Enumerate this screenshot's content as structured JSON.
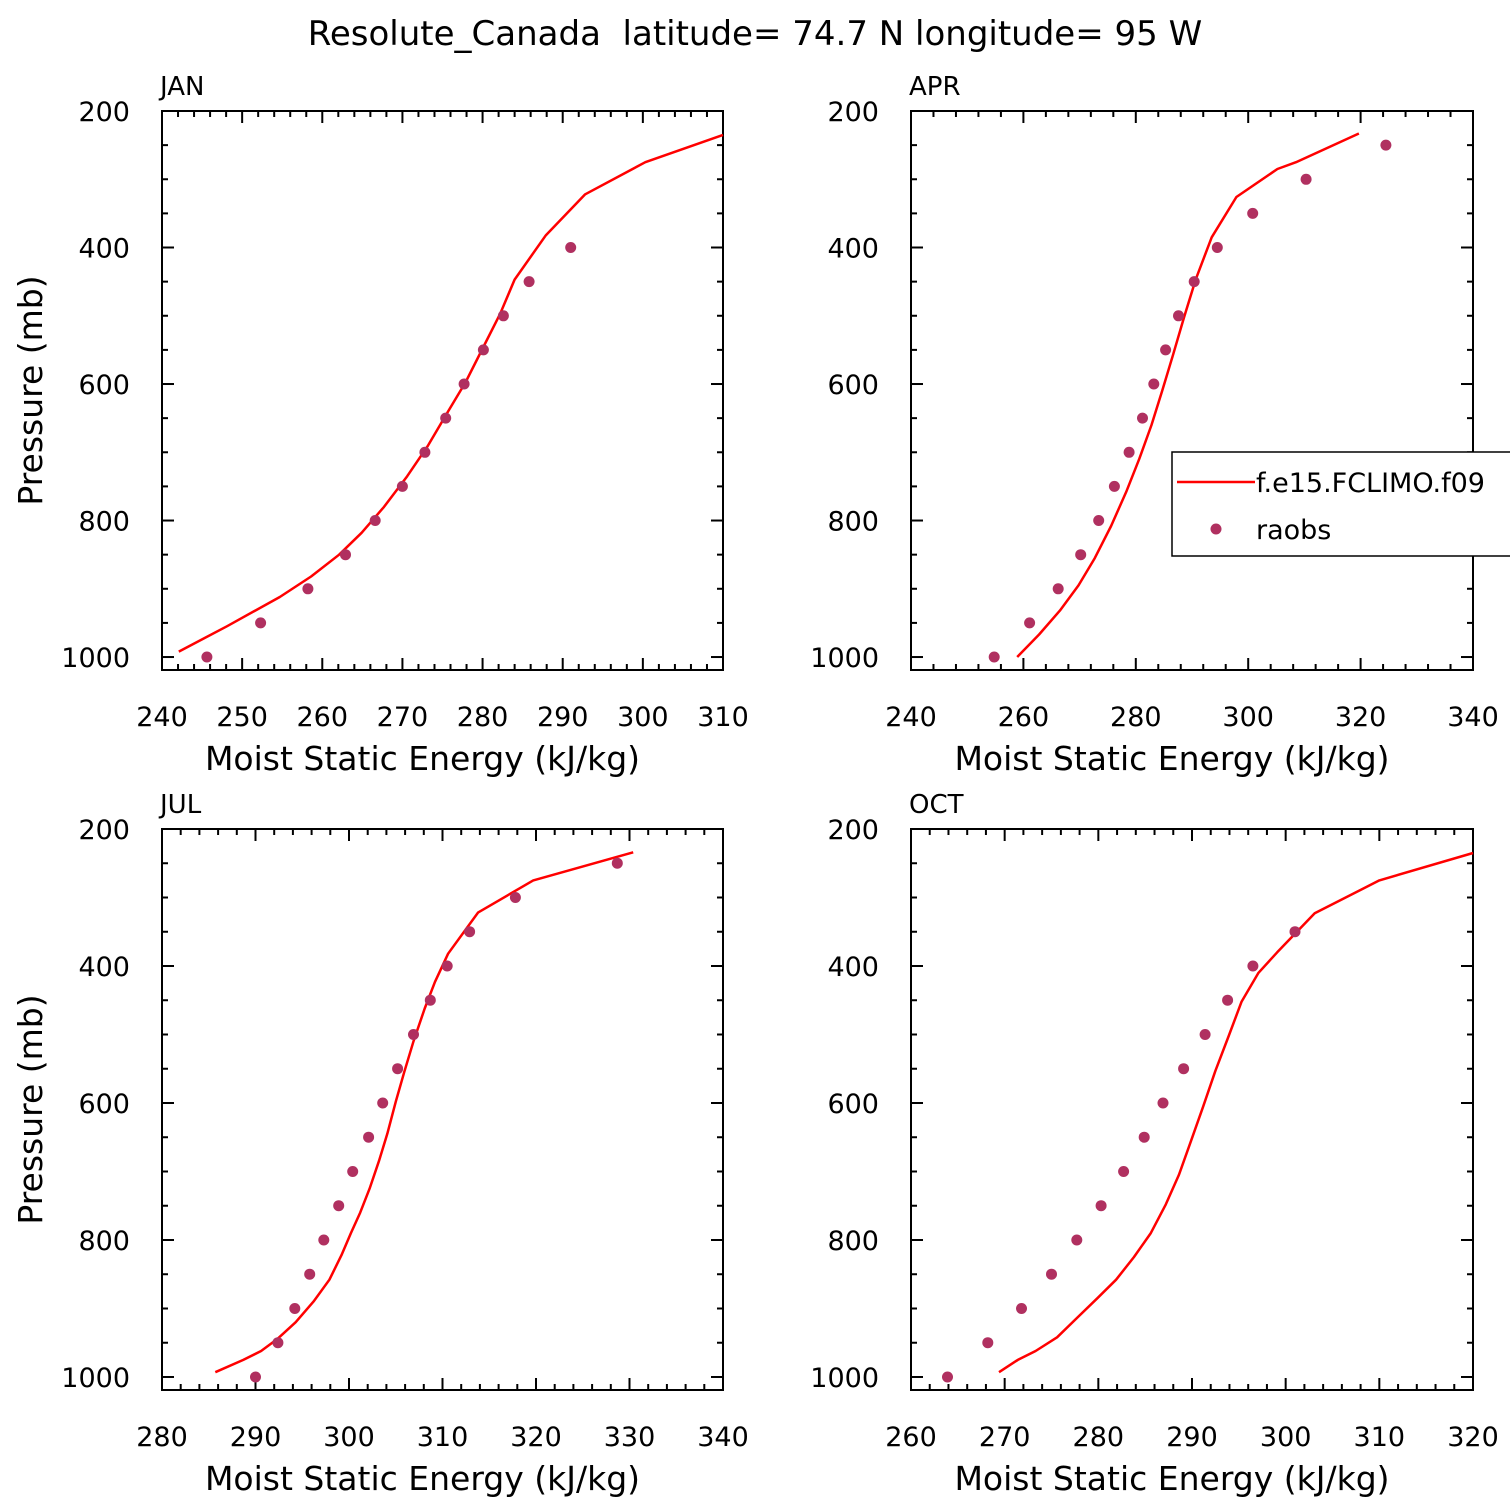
{
  "figure_title": "Resolute_Canada  latitude= 74.7 N longitude= 95 W",
  "colors": {
    "model_line": "#ff0000",
    "raobs_marker": "#b03060",
    "axes": "#000000"
  },
  "legend": {
    "entries": [
      {
        "label": "f.e15.FCLIMO.f09",
        "style": "line"
      },
      {
        "label": "raobs",
        "style": "marker"
      }
    ],
    "panel": "APR",
    "placement": "right"
  },
  "chart_data": [
    {
      "type": "line+scatter",
      "panel_label": "JAN",
      "xlabel": "Moist Static Energy (kJ/kg)",
      "ylabel": "Pressure (mb)",
      "xlim": [
        240,
        310
      ],
      "ylim": [
        1000,
        200
      ],
      "y_inverted": true,
      "xticks": [
        240,
        250,
        260,
        270,
        280,
        290,
        300,
        310
      ],
      "yticks": [
        200,
        400,
        600,
        800,
        1000
      ],
      "grid": false,
      "series": [
        {
          "name": "f.e15.FCLIMO.f09",
          "style": "line",
          "points": [
            [
              242.1,
              992
            ],
            [
              248.1,
              955
            ],
            [
              254.7,
              912
            ],
            [
              258.6,
              882
            ],
            [
              262.1,
              850
            ],
            [
              264.9,
              818
            ],
            [
              267.7,
              780
            ],
            [
              270.6,
              735
            ],
            [
              273.2,
              690
            ],
            [
              275.6,
              642
            ],
            [
              277.9,
              597
            ],
            [
              280.0,
              548
            ],
            [
              282.2,
              497
            ],
            [
              284.0,
              447
            ],
            [
              287.9,
              382
            ],
            [
              292.8,
              322
            ],
            [
              300.3,
              275
            ],
            [
              310.0,
              235
            ]
          ]
        },
        {
          "name": "raobs",
          "style": "marker",
          "points": [
            [
              245.6,
              1000
            ],
            [
              252.3,
              950
            ],
            [
              258.2,
              900
            ],
            [
              262.9,
              850
            ],
            [
              266.6,
              800
            ],
            [
              270.0,
              750
            ],
            [
              272.8,
              700
            ],
            [
              275.4,
              650
            ],
            [
              277.7,
              600
            ],
            [
              280.1,
              550
            ],
            [
              282.6,
              500
            ],
            [
              285.8,
              450
            ],
            [
              291.0,
              400
            ]
          ]
        }
      ]
    },
    {
      "type": "line+scatter",
      "panel_label": "APR",
      "xlabel": "Moist Static Energy (kJ/kg)",
      "ylabel": "",
      "xlim": [
        240,
        340
      ],
      "ylim": [
        1000,
        200
      ],
      "y_inverted": true,
      "xticks": [
        240,
        260,
        280,
        300,
        320,
        340
      ],
      "yticks": [
        200,
        400,
        600,
        800,
        1000
      ],
      "grid": false,
      "series": [
        {
          "name": "f.e15.FCLIMO.f09",
          "style": "line",
          "points": [
            [
              258.9,
              1000
            ],
            [
              262.8,
              967
            ],
            [
              266.5,
              932
            ],
            [
              269.8,
              895
            ],
            [
              272.7,
              855
            ],
            [
              275.6,
              808
            ],
            [
              278.3,
              758
            ],
            [
              280.6,
              710
            ],
            [
              282.8,
              660
            ],
            [
              284.7,
              610
            ],
            [
              286.7,
              555
            ],
            [
              288.6,
              502
            ],
            [
              290.7,
              446
            ],
            [
              293.5,
              385
            ],
            [
              297.9,
              326
            ],
            [
              305.2,
              285
            ],
            [
              308.5,
              275
            ],
            [
              319.7,
              233
            ]
          ]
        },
        {
          "name": "raobs",
          "style": "marker",
          "points": [
            [
              254.8,
              1000
            ],
            [
              261.1,
              950
            ],
            [
              266.2,
              900
            ],
            [
              270.2,
              850
            ],
            [
              273.4,
              800
            ],
            [
              276.2,
              750
            ],
            [
              278.8,
              700
            ],
            [
              281.2,
              650
            ],
            [
              283.2,
              600
            ],
            [
              285.3,
              550
            ],
            [
              287.6,
              500
            ],
            [
              290.4,
              450
            ],
            [
              294.5,
              400
            ],
            [
              300.8,
              350
            ],
            [
              310.3,
              300
            ],
            [
              324.5,
              250
            ]
          ]
        }
      ]
    },
    {
      "type": "line+scatter",
      "panel_label": "JUL",
      "xlabel": "Moist Static Energy (kJ/kg)",
      "ylabel": "Pressure (mb)",
      "xlim": [
        280,
        340
      ],
      "ylim": [
        1000,
        200
      ],
      "y_inverted": true,
      "xticks": [
        280,
        290,
        300,
        310,
        320,
        330,
        340
      ],
      "yticks": [
        200,
        400,
        600,
        800,
        1000
      ],
      "grid": false,
      "series": [
        {
          "name": "f.e15.FCLIMO.f09",
          "style": "line",
          "points": [
            [
              285.7,
              993
            ],
            [
              288.7,
              975
            ],
            [
              290.6,
              962
            ],
            [
              292.3,
              945
            ],
            [
              294.3,
              920
            ],
            [
              296.2,
              890
            ],
            [
              297.9,
              858
            ],
            [
              299.2,
              822
            ],
            [
              300.2,
              790
            ],
            [
              301.2,
              760
            ],
            [
              302.2,
              725
            ],
            [
              303.2,
              685
            ],
            [
              304.1,
              645
            ],
            [
              305.0,
              598
            ],
            [
              305.9,
              555
            ],
            [
              306.9,
              510
            ],
            [
              308.1,
              462
            ],
            [
              309.2,
              423
            ],
            [
              310.6,
              382
            ],
            [
              313.8,
              322
            ],
            [
              319.7,
              275
            ],
            [
              330.4,
              234
            ]
          ]
        },
        {
          "name": "raobs",
          "style": "marker",
          "points": [
            [
              290.0,
              1000
            ],
            [
              292.4,
              950
            ],
            [
              294.2,
              900
            ],
            [
              295.8,
              850
            ],
            [
              297.3,
              800
            ],
            [
              298.9,
              750
            ],
            [
              300.4,
              700
            ],
            [
              302.1,
              650
            ],
            [
              303.6,
              600
            ],
            [
              305.2,
              550
            ],
            [
              306.9,
              500
            ],
            [
              308.7,
              450
            ],
            [
              310.5,
              400
            ],
            [
              312.9,
              350
            ],
            [
              317.8,
              300
            ],
            [
              328.7,
              250
            ]
          ]
        }
      ]
    },
    {
      "type": "line+scatter",
      "panel_label": "OCT",
      "xlabel": "Moist Static Energy (kJ/kg)",
      "ylabel": "",
      "xlim": [
        260,
        320
      ],
      "ylim": [
        1000,
        200
      ],
      "y_inverted": true,
      "xticks": [
        260,
        270,
        280,
        290,
        300,
        310,
        320
      ],
      "yticks": [
        200,
        400,
        600,
        800,
        1000
      ],
      "grid": false,
      "series": [
        {
          "name": "f.e15.FCLIMO.f09",
          "style": "line",
          "points": [
            [
              269.4,
              993
            ],
            [
              271.4,
              975
            ],
            [
              273.3,
              962
            ],
            [
              275.6,
              942
            ],
            [
              277.7,
              914
            ],
            [
              279.9,
              885
            ],
            [
              281.9,
              858
            ],
            [
              283.8,
              825
            ],
            [
              285.6,
              790
            ],
            [
              287.2,
              748
            ],
            [
              288.6,
              705
            ],
            [
              289.9,
              655
            ],
            [
              291.2,
              605
            ],
            [
              292.5,
              553
            ],
            [
              293.9,
              503
            ],
            [
              295.3,
              452
            ],
            [
              297.1,
              410
            ],
            [
              299.1,
              380
            ],
            [
              303.1,
              323
            ],
            [
              310.0,
              275
            ],
            [
              320.0,
              235
            ]
          ]
        },
        {
          "name": "raobs",
          "style": "marker",
          "points": [
            [
              263.9,
              1000
            ],
            [
              268.2,
              950
            ],
            [
              271.8,
              900
            ],
            [
              275.0,
              850
            ],
            [
              277.7,
              800
            ],
            [
              280.3,
              750
            ],
            [
              282.7,
              700
            ],
            [
              284.9,
              650
            ],
            [
              286.9,
              600
            ],
            [
              289.1,
              550
            ],
            [
              291.4,
              500
            ],
            [
              293.8,
              450
            ],
            [
              296.5,
              400
            ],
            [
              301.0,
              350
            ]
          ]
        }
      ]
    }
  ]
}
